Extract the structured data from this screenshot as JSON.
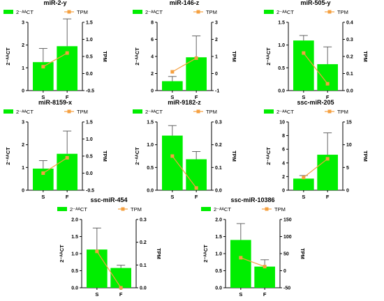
{
  "chart_data": [
    {
      "type": "bar+line",
      "title": "miR-2-y",
      "categories": [
        "S",
        "F"
      ],
      "left": {
        "label": "2⁻ᴬᴬCT",
        "ylim": [
          0,
          3
        ],
        "ticks": [
          "0",
          "1",
          "2",
          "3"
        ],
        "values": [
          1.25,
          1.95
        ],
        "errors": [
          0.6,
          1.2
        ]
      },
      "right": {
        "label": "TPM",
        "ylim": [
          -0.5,
          1.5
        ],
        "ticks": [
          "-0.5",
          "0.0",
          "0.5",
          "1.0",
          "1.5"
        ],
        "values": [
          0.2,
          0.6
        ]
      },
      "legend": [
        "2⁻ᴬᴬCT",
        "TPM"
      ]
    },
    {
      "type": "bar+line",
      "title": "miR-146-z",
      "categories": [
        "S",
        "F"
      ],
      "left": {
        "label": "2⁻ᴬᴬCT",
        "ylim": [
          0,
          8
        ],
        "ticks": [
          "0",
          "2",
          "4",
          "6",
          "8"
        ],
        "values": [
          1.1,
          3.9
        ],
        "errors": [
          0.55,
          2.5
        ]
      },
      "right": {
        "label": "TPM",
        "ylim": [
          -1,
          3
        ],
        "ticks": [
          "-1",
          "0",
          "1",
          "2",
          "3"
        ],
        "values": [
          0.1,
          0.9
        ]
      },
      "legend": [
        "2⁻ᴬᴬCT",
        "TPM"
      ]
    },
    {
      "type": "bar+line",
      "title": "miR-505-y",
      "categories": [
        "S",
        "F"
      ],
      "left": {
        "label": "2⁻ᴬᴬCT",
        "ylim": [
          0,
          1.5
        ],
        "ticks": [
          "0.0",
          "0.5",
          "1.0",
          "1.5"
        ],
        "values": [
          1.1,
          0.58
        ],
        "errors": [
          0.11,
          0.38
        ]
      },
      "right": {
        "label": "TPM",
        "ylim": [
          0,
          0.4
        ],
        "ticks": [
          "0.0",
          "0.1",
          "0.2",
          "0.3",
          "0.4"
        ],
        "values": [
          0.22,
          0.04
        ]
      },
      "legend": [
        "2⁻ᴬᴬCT",
        "TPM"
      ]
    },
    {
      "type": "bar+line",
      "title": "miR-8159-x",
      "categories": [
        "S",
        "F"
      ],
      "left": {
        "label": "2⁻ᴬᴬCT",
        "ylim": [
          0,
          3
        ],
        "ticks": [
          "0",
          "1",
          "2",
          "3"
        ],
        "values": [
          0.95,
          1.6
        ],
        "errors": [
          0.35,
          1.0
        ]
      },
      "right": {
        "label": "TPM",
        "ylim": [
          -0.5,
          1.5
        ],
        "ticks": [
          "-0.5",
          "0.0",
          "0.5",
          "1.0",
          "1.5"
        ],
        "values": [
          0.0,
          0.45
        ]
      },
      "legend": [
        "2⁻ᴬᴬCT",
        "TPM"
      ]
    },
    {
      "type": "bar+line",
      "title": "miR-9182-z",
      "categories": [
        "S",
        "F"
      ],
      "left": {
        "label": "2⁻ᴬᴬCT",
        "ylim": [
          0,
          1.5
        ],
        "ticks": [
          "0.0",
          "0.5",
          "1.0",
          "1.5"
        ],
        "values": [
          1.2,
          0.68
        ],
        "errors": [
          0.22,
          0.17
        ]
      },
      "right": {
        "label": "TPM",
        "ylim": [
          0,
          0.3
        ],
        "ticks": [
          "0.0",
          "0.1",
          "0.2",
          "0.3"
        ],
        "values": [
          0.15,
          0.01
        ]
      },
      "legend": [
        "2⁻ᴬᴬCT",
        "TPM"
      ]
    },
    {
      "type": "bar+line",
      "title": "ssc-miR-205",
      "categories": [
        "S",
        "F"
      ],
      "left": {
        "label": "2⁻ᴬᴬCT",
        "ylim": [
          0,
          10
        ],
        "ticks": [
          "0",
          "2",
          "4",
          "6",
          "8",
          "10"
        ],
        "values": [
          1.7,
          5.2
        ],
        "errors": [
          0.45,
          3.2
        ]
      },
      "right": {
        "label": "TPM",
        "ylim": [
          0,
          15
        ],
        "ticks": [
          "0",
          "5",
          "10",
          "15"
        ],
        "values": [
          2.8,
          6.9
        ]
      },
      "legend": [
        "2⁻ᴬᴬCT",
        "TPM"
      ]
    },
    {
      "type": "bar+line",
      "title": "ssc-miR-454",
      "categories": [
        "S",
        "F"
      ],
      "left": {
        "label": "2⁻ᴬᴬCT",
        "ylim": [
          0,
          2
        ],
        "ticks": [
          "0.0",
          "0.5",
          "1.0",
          "1.5",
          "2.0"
        ],
        "values": [
          1.12,
          0.58
        ],
        "errors": [
          0.63,
          0.08
        ]
      },
      "right": {
        "label": "TPM",
        "ylim": [
          0,
          0.3
        ],
        "ticks": [
          "0.0",
          "0.1",
          "0.2",
          "0.3"
        ],
        "values": [
          0.16,
          0.0
        ]
      },
      "legend": [
        "2⁻ᴬᴬCT",
        "TPM"
      ]
    },
    {
      "type": "bar+line",
      "title": "ssc-miR-10386",
      "categories": [
        "S",
        "F"
      ],
      "left": {
        "label": "2⁻ᴬᴬCT",
        "ylim": [
          0,
          2
        ],
        "ticks": [
          "0.0",
          "0.5",
          "1.0",
          "1.5",
          "2.0"
        ],
        "values": [
          1.4,
          0.62
        ],
        "errors": [
          0.48,
          0.2
        ]
      },
      "right": {
        "label": "TPM",
        "ylim": [
          -50,
          150
        ],
        "ticks": [
          "-50",
          "0",
          "50",
          "100",
          "150"
        ],
        "values": [
          38,
          12
        ]
      },
      "legend": [
        "2⁻ᴬᴬCT",
        "TPM"
      ]
    }
  ],
  "colors": {
    "bar": "#00ee00",
    "line": "#f5a040",
    "axis": "#000000",
    "error": "#555555"
  }
}
